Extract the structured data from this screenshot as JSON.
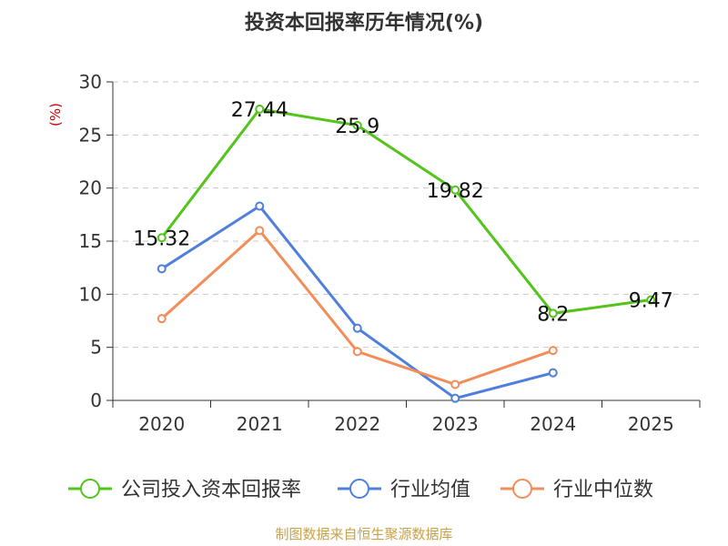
{
  "chart_data": {
    "type": "line",
    "title": "投资本回报率历年情况(%)",
    "y_unit": "(%)",
    "categories": [
      "2020",
      "2021",
      "2022",
      "2023",
      "2024",
      "2025"
    ],
    "ylim": [
      0,
      30
    ],
    "yticks": [
      0,
      5,
      10,
      15,
      20,
      25,
      30
    ],
    "grid": true,
    "series": [
      {
        "name": "公司投入资本回报率",
        "color": "#52c41a",
        "values": [
          15.32,
          27.44,
          25.9,
          19.82,
          8.2,
          9.47
        ],
        "labels": [
          "15.32",
          "27.44",
          "25.9",
          "19.82",
          "8.2",
          "9.47"
        ]
      },
      {
        "name": "行业均值",
        "color": "#4f7fdc",
        "values": [
          12.4,
          18.3,
          6.8,
          0.2,
          2.6,
          null
        ]
      },
      {
        "name": "行业中位数",
        "color": "#f28d5a",
        "values": [
          7.7,
          16.0,
          4.6,
          1.5,
          4.7,
          null
        ]
      }
    ],
    "legend": "bottom",
    "source": "制图数据来自恒生聚源数据库"
  }
}
